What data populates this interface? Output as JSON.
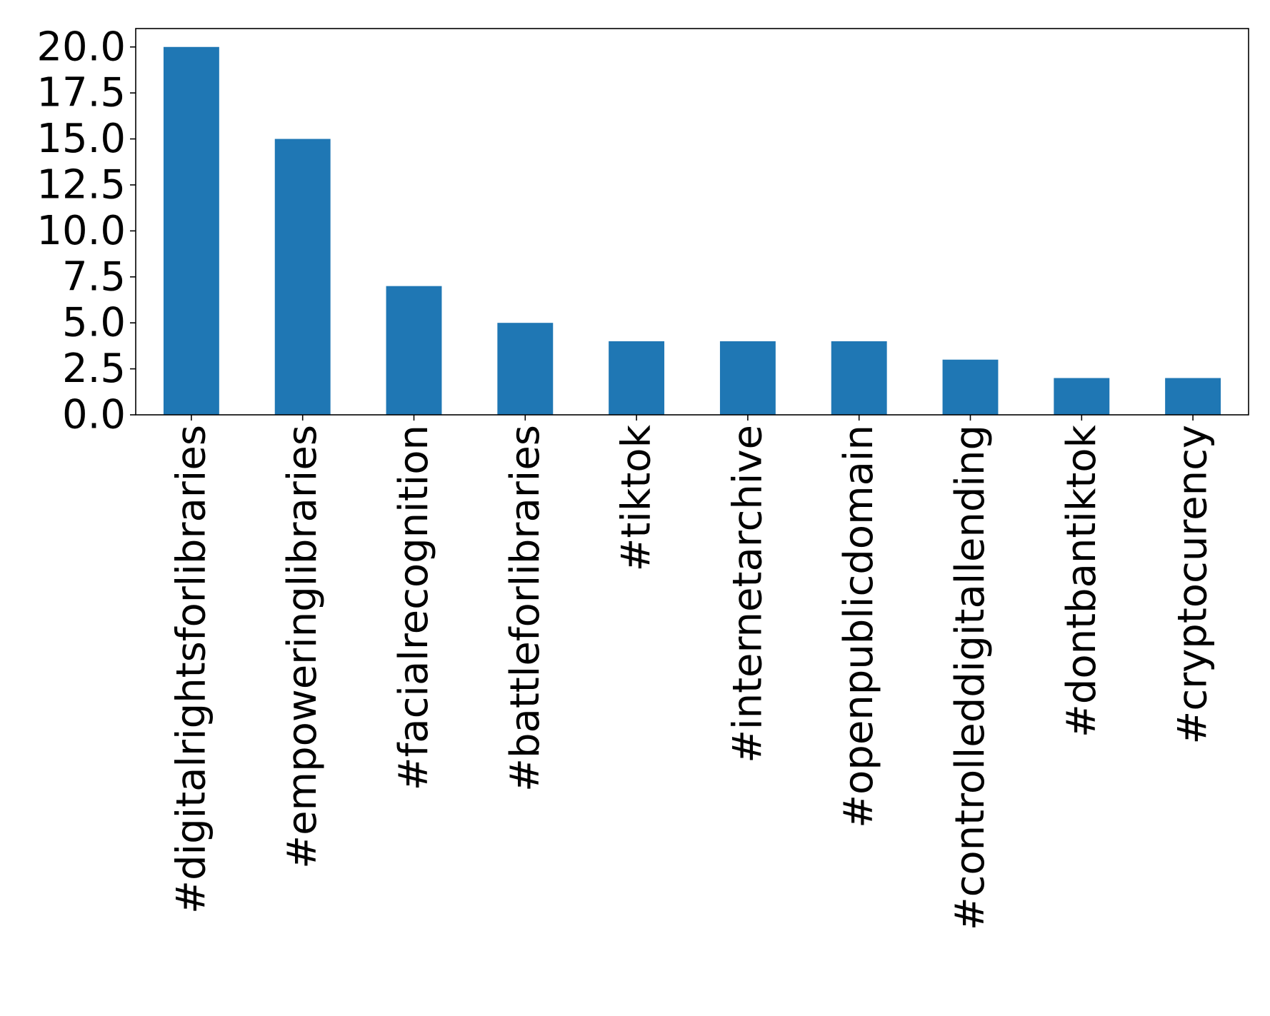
{
  "chart_data": {
    "type": "bar",
    "title": "",
    "xlabel": "",
    "ylabel": "",
    "categories": [
      "#digitalrightsforlibraries",
      "#empoweringlibraries",
      "#facialrecognition",
      "#battleforlibraries",
      "#tiktok",
      "#internetarchive",
      "#openpublicdomain",
      "#controlleddigitallending",
      "#dontbantiktok",
      "#cryptocurency"
    ],
    "values": [
      20,
      15,
      7,
      5,
      4,
      4,
      4,
      3,
      2,
      2
    ],
    "ylim": [
      0,
      21
    ],
    "yticks": [
      "0.0",
      "2.5",
      "5.0",
      "7.5",
      "10.0",
      "12.5",
      "15.0",
      "17.5",
      "20.0"
    ],
    "grid": false,
    "legend": "none",
    "colors": {
      "bar": "#1f77b4",
      "axis": "#000000",
      "background": "#ffffff"
    }
  }
}
